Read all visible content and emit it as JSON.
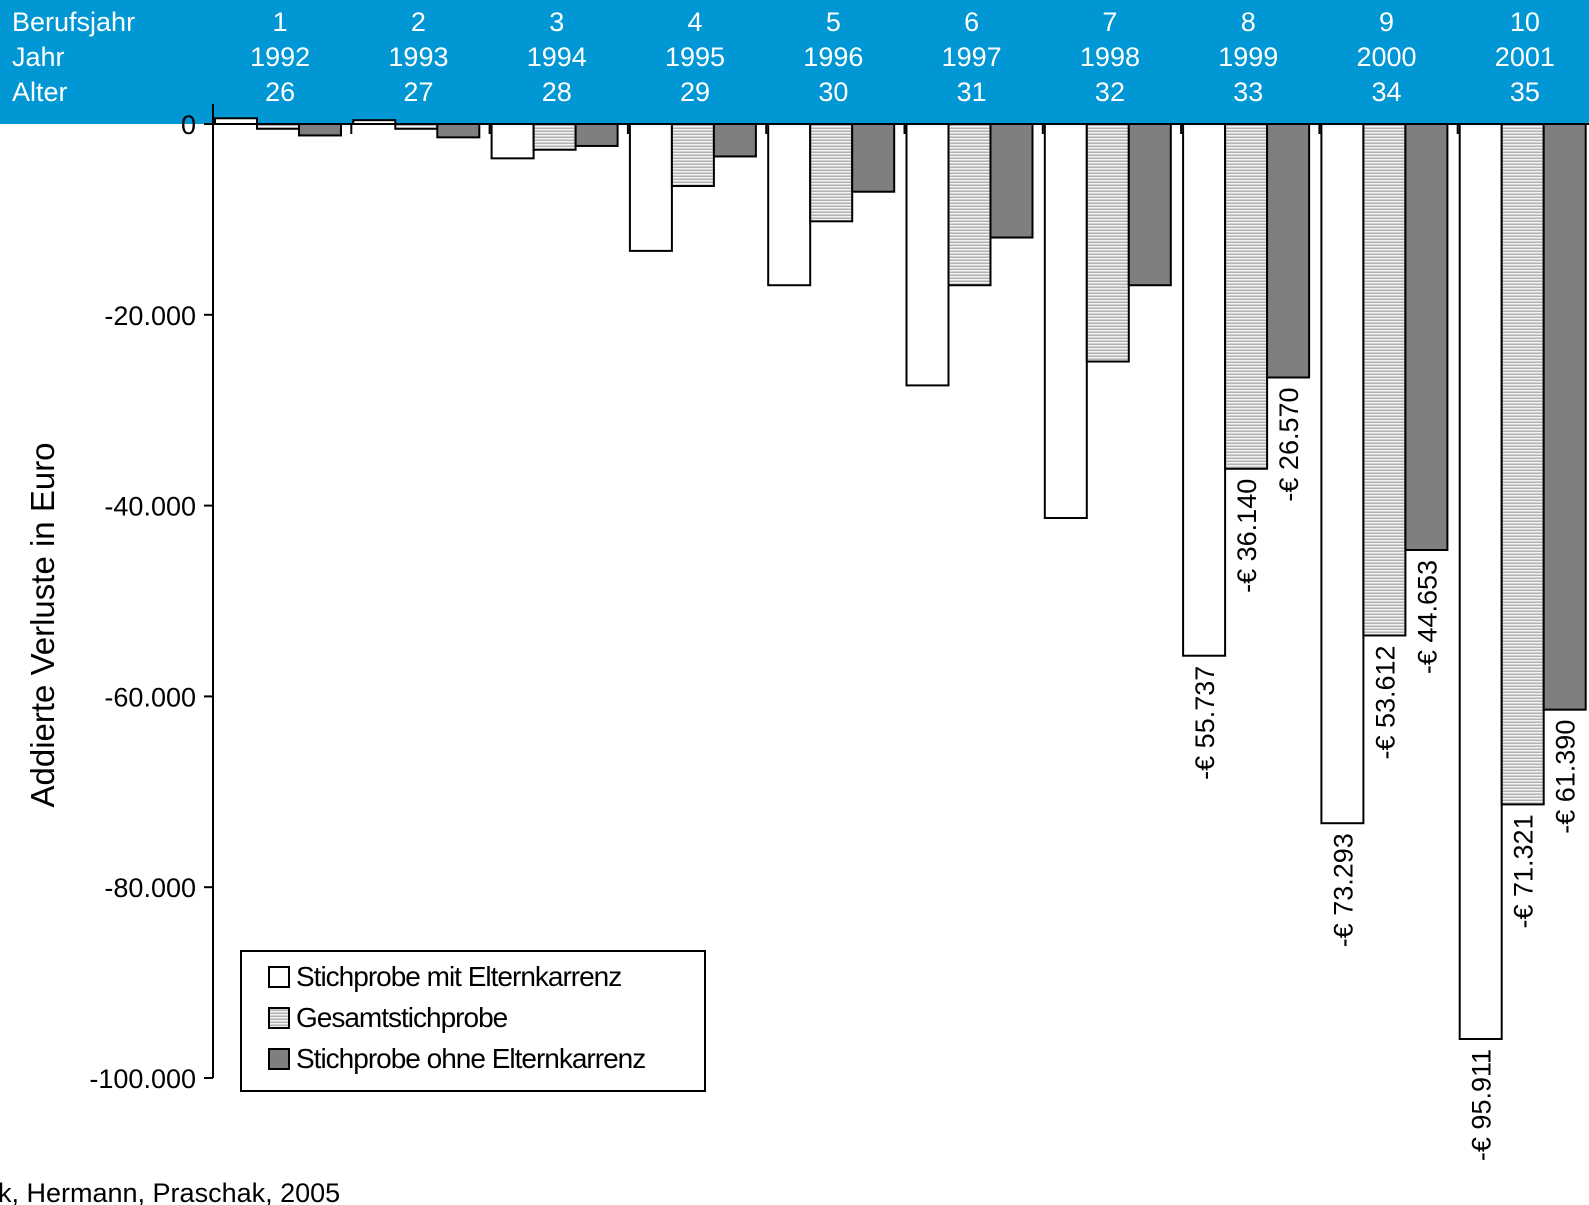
{
  "source": "k, Hermann, Praschak, 2005",
  "header_rows": [
    {
      "label": "Berufsjahr",
      "values": [
        "1",
        "2",
        "3",
        "4",
        "5",
        "6",
        "7",
        "8",
        "9",
        "10"
      ]
    },
    {
      "label": "Jahr",
      "values": [
        "1992",
        "1993",
        "1994",
        "1995",
        "1996",
        "1997",
        "1998",
        "1999",
        "2000",
        "2001"
      ]
    },
    {
      "label": "Alter",
      "values": [
        "26",
        "27",
        "28",
        "29",
        "30",
        "31",
        "32",
        "33",
        "34",
        "35"
      ]
    }
  ],
  "colors": {
    "header_band": "#0097d4",
    "series_1_fill": "#ffffff",
    "series_2_fill": "#d4d4d4",
    "series_3_fill": "#7f7f7f"
  },
  "chart_data": {
    "type": "bar",
    "ylabel": "Addierte Verluste in Euro",
    "ylim": [
      -100000,
      0
    ],
    "yticks": [
      0,
      -20000,
      -40000,
      -60000,
      -80000,
      -100000
    ],
    "ytick_labels": [
      "0",
      "-20.000",
      "-40.000",
      "-60.000",
      "-80.000",
      "-100.000"
    ],
    "categories": [
      "1",
      "2",
      "3",
      "4",
      "5",
      "6",
      "7",
      "8",
      "9",
      "10"
    ],
    "series": [
      {
        "name": "Stichprobe mit Elternkarrenz",
        "pattern": "white",
        "values": [
          600,
          400,
          -3600,
          -13300,
          -16900,
          -27400,
          -41300,
          -55737,
          -73293,
          -95911
        ],
        "labels": [
          "",
          "",
          "",
          "",
          "",
          "",
          "",
          "-€ 55.737",
          "-€ 73.293",
          "-€ 95.911"
        ]
      },
      {
        "name": "Gesamtstichprobe",
        "pattern": "horizontal-lines",
        "values": [
          -500,
          -500,
          -2700,
          -6500,
          -10200,
          -16900,
          -24900,
          -36140,
          -53612,
          -71321
        ],
        "labels": [
          "",
          "",
          "",
          "",
          "",
          "",
          "",
          "-€ 36.140",
          "-€ 53.612",
          "-€ 71.321"
        ]
      },
      {
        "name": "Stichprobe ohne Elternkarrenz",
        "pattern": "dark-gray",
        "values": [
          -1200,
          -1400,
          -2300,
          -3400,
          -7100,
          -11900,
          -16900,
          -26570,
          -44653,
          -61390
        ],
        "labels": [
          "",
          "",
          "",
          "",
          "",
          "",
          "",
          "-€ 26.570",
          "-€ 44.653",
          "-€ 61.390"
        ]
      }
    ],
    "legend": "bottom-left",
    "grid": false
  }
}
